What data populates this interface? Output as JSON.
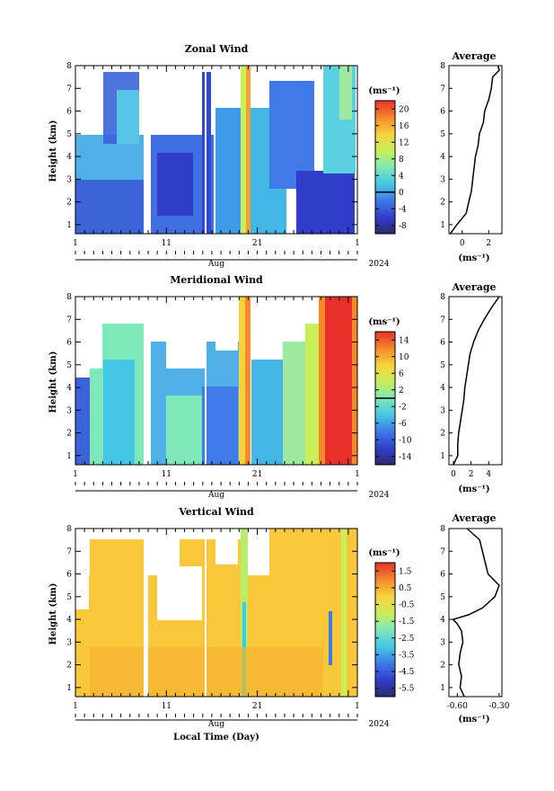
{
  "chart_data": [
    {
      "type": "heatmap",
      "title": "Zonal Wind",
      "ylabel": "Height (km)",
      "xlabel": "",
      "x_ticks": [
        "1",
        "11",
        "21",
        "1"
      ],
      "x_range_days": [
        1,
        32
      ],
      "month_label": "Aug",
      "year_label": "2024",
      "y_ticks": [
        "1",
        "2",
        "3",
        "4",
        "5",
        "6",
        "7",
        "8"
      ],
      "ylim": [
        0.6,
        8.0
      ],
      "colorbar": {
        "unit": "(ms⁻¹)",
        "tick_labels": [
          "20",
          "16",
          "12",
          "8",
          "4",
          "0",
          "-4",
          "-8"
        ],
        "ticks": [
          20,
          16,
          12,
          8,
          4,
          0,
          -4,
          -8
        ],
        "range": [
          -10,
          22
        ],
        "zero_line": 0
      },
      "avg_profile": {
        "title": "Average",
        "unit_label": "(ms⁻¹)",
        "x_ticks": [
          "0",
          "2"
        ],
        "xlim": [
          -1.0,
          3.0
        ],
        "heights": [
          0.6,
          1.0,
          1.5,
          2.0,
          2.5,
          3.0,
          3.5,
          4.0,
          4.5,
          5.0,
          5.5,
          6.0,
          6.5,
          7.0,
          7.5,
          7.8,
          8.0
        ],
        "values": [
          -0.9,
          -0.4,
          0.3,
          0.5,
          0.7,
          0.8,
          0.9,
          1.0,
          1.2,
          1.3,
          1.6,
          1.7,
          2.0,
          2.2,
          2.3,
          2.8,
          2.7
        ]
      }
    },
    {
      "type": "heatmap",
      "title": "Meridional Wind",
      "ylabel": "Height (km)",
      "xlabel": "",
      "x_ticks": [
        "1",
        "11",
        "21",
        "1"
      ],
      "x_range_days": [
        1,
        32
      ],
      "month_label": "Aug",
      "year_label": "2024",
      "y_ticks": [
        "1",
        "2",
        "3",
        "4",
        "5",
        "6",
        "7",
        "8"
      ],
      "ylim": [
        0.6,
        8.0
      ],
      "colorbar": {
        "unit": "(ms⁻¹)",
        "tick_labels": [
          "14",
          "10",
          "6",
          "2",
          "-2",
          "-6",
          "-10",
          "-14"
        ],
        "ticks": [
          14,
          10,
          6,
          2,
          -2,
          -6,
          -10,
          -14
        ],
        "range": [
          -16,
          16
        ],
        "zero_line": 0
      },
      "avg_profile": {
        "title": "Average",
        "unit_label": "(ms⁻¹)",
        "x_ticks": [
          "0",
          "2",
          "4"
        ],
        "xlim": [
          -0.5,
          5.5
        ],
        "heights": [
          0.6,
          1.0,
          1.5,
          2.0,
          2.5,
          3.0,
          3.5,
          4.0,
          4.5,
          5.0,
          5.5,
          6.0,
          6.5,
          7.0,
          7.5,
          8.0
        ],
        "values": [
          0.0,
          0.5,
          0.5,
          0.6,
          0.8,
          1.0,
          1.2,
          1.3,
          1.5,
          1.7,
          1.9,
          2.3,
          2.8,
          3.5,
          4.3,
          5.2
        ]
      }
    },
    {
      "type": "heatmap",
      "title": "Vertical Wind",
      "ylabel": "Height (km)",
      "xlabel": "Local Time (Day)",
      "x_ticks": [
        "1",
        "11",
        "21",
        "1"
      ],
      "x_range_days": [
        1,
        32
      ],
      "month_label": "Aug",
      "year_label": "2024",
      "y_ticks": [
        "1",
        "2",
        "3",
        "4",
        "5",
        "6",
        "7",
        "8"
      ],
      "ylim": [
        0.6,
        8.0
      ],
      "colorbar": {
        "unit": "(ms⁻¹)",
        "tick_labels": [
          "1.5",
          "0.5",
          "-0.5",
          "-1.5",
          "-2.5",
          "-3.5",
          "-4.5",
          "-5.5"
        ],
        "ticks": [
          1.5,
          0.5,
          -0.5,
          -1.5,
          -2.5,
          -3.5,
          -4.5,
          -5.5
        ],
        "range": [
          -6.0,
          2.0
        ]
      },
      "avg_profile": {
        "title": "Average",
        "unit_label": "(ms⁻¹)",
        "x_ticks": [
          "-0.60",
          "-0.30"
        ],
        "xlim": [
          -0.66,
          -0.28
        ],
        "heights": [
          0.6,
          1.0,
          1.5,
          2.0,
          2.5,
          3.0,
          3.5,
          3.8,
          4.0,
          4.2,
          4.5,
          5.0,
          5.5,
          6.0,
          6.5,
          7.0,
          7.5,
          8.0
        ],
        "values": [
          -0.55,
          -0.58,
          -0.57,
          -0.59,
          -0.58,
          -0.56,
          -0.57,
          -0.6,
          -0.63,
          -0.52,
          -0.42,
          -0.33,
          -0.3,
          -0.38,
          -0.4,
          -0.42,
          -0.44,
          -0.53
        ]
      }
    }
  ]
}
